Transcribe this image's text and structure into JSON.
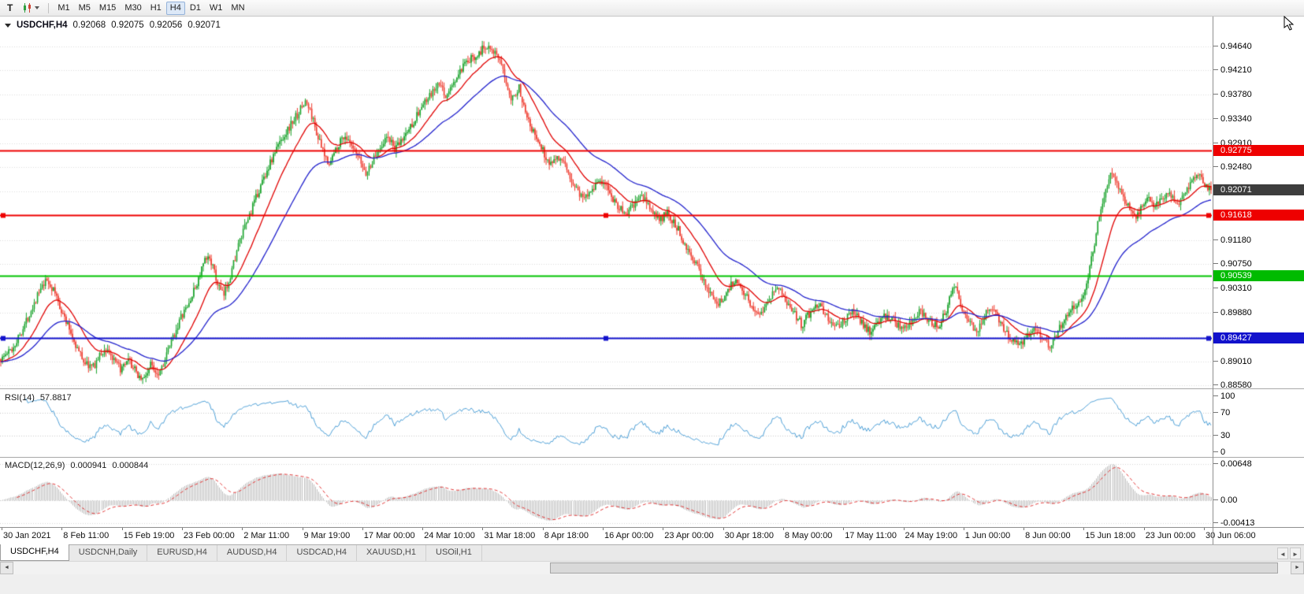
{
  "toolbar": {
    "tool_button_label": "T",
    "timeframes": [
      "M1",
      "M5",
      "M15",
      "M30",
      "H1",
      "H4",
      "D1",
      "W1",
      "MN"
    ],
    "active_timeframe": "H4"
  },
  "chart_header": {
    "marker_icon": "triangle-down",
    "symbol": "USDCHF,H4",
    "open": "0.92068",
    "high": "0.92075",
    "low": "0.92056",
    "close": "0.92071"
  },
  "price_axis": {
    "labels": [
      "0.94640",
      "0.94210",
      "0.93780",
      "0.93340",
      "0.92910",
      "0.92480",
      "0.91180",
      "0.90750",
      "0.90310",
      "0.89880",
      "0.89010",
      "0.88580"
    ],
    "badges": [
      {
        "name": "resistance-upper",
        "text": "0.92775",
        "price": 0.92775,
        "bg": "#ee0000",
        "fg": "#ffffff"
      },
      {
        "name": "current-price",
        "text": "0.92071",
        "price": 0.92071,
        "bg": "#3d3d3d",
        "fg": "#ffffff"
      },
      {
        "name": "resistance-lower",
        "text": "0.91618",
        "price": 0.91618,
        "bg": "#ee0000",
        "fg": "#ffffff"
      },
      {
        "name": "support-green",
        "text": "0.90539",
        "price": 0.90539,
        "bg": "#00bb00",
        "fg": "#ffffff"
      },
      {
        "name": "support-blue",
        "text": "0.89427",
        "price": 0.89427,
        "bg": "#1212cc",
        "fg": "#ffffff"
      }
    ]
  },
  "time_axis": {
    "labels": [
      "30 Jan 2021",
      "8 Feb 11:00",
      "15 Feb 19:00",
      "23 Feb 00:00",
      "2 Mar 11:00",
      "9 Mar 19:00",
      "17 Mar 00:00",
      "24 Mar 10:00",
      "31 Mar 18:00",
      "8 Apr 18:00",
      "16 Apr 00:00",
      "23 Apr 00:00",
      "30 Apr 18:00",
      "8 May 00:00",
      "17 May 11:00",
      "24 May 19:00",
      "1 Jun 00:00",
      "8 Jun 00:00",
      "15 Jun 18:00",
      "23 Jun 00:00",
      "30 Jun 06:00"
    ]
  },
  "panes": {
    "rsi": {
      "title": "RSI(14)",
      "value": "57.8817",
      "axis_labels": [
        "100",
        "70",
        "30",
        "0"
      ],
      "levels": [
        70,
        30
      ],
      "color": "#4d9fd6"
    },
    "macd": {
      "title": "MACD(12,26,9)",
      "value_main": "0.000941",
      "value_signal": "0.000844",
      "axis_labels": [
        "0.00648",
        "0.00",
        "-0.00413"
      ],
      "histogram_color": "#bcbcbc",
      "signal_color": "#e03030"
    }
  },
  "tabs": {
    "items": [
      "USDCHF,H4",
      "USDCNH,Daily",
      "EURUSD,H4",
      "AUDUSD,H4",
      "USDCAD,H4",
      "XAUUSD,H1",
      "USOil,H1"
    ],
    "active_index": 0
  },
  "tab_scroll": {
    "left_arrow": "◄",
    "right_arrow": "►"
  },
  "scrollbar": {
    "left_arrow": "◄",
    "right_arrow": "►",
    "thumb_start": 0.42,
    "thumb_end": 0.99
  },
  "chart_data": {
    "type": "candlestick",
    "symbol": "USDCHF",
    "timeframe": "H4",
    "num_candles": 760,
    "y_range": [
      0.8853,
      0.9517
    ],
    "grid_color": "#dcdcdc",
    "grid_prices": [
      0.8858,
      0.8901,
      0.8945,
      0.8988,
      0.9031,
      0.9075,
      0.9118,
      0.9162,
      0.9205,
      0.9248,
      0.9291,
      0.9334,
      0.9378,
      0.9421,
      0.9464
    ],
    "x_labels": [
      "30 Jan 2021",
      "8 Feb 11:00",
      "15 Feb 19:00",
      "23 Feb 00:00",
      "2 Mar 11:00",
      "9 Mar 19:00",
      "17 Mar 00:00",
      "24 Mar 10:00",
      "31 Mar 18:00",
      "8 Apr 18:00",
      "16 Apr 00:00",
      "23 Apr 00:00",
      "30 Apr 18:00",
      "8 May 00:00",
      "17 May 11:00",
      "24 May 19:00",
      "1 Jun 00:00",
      "8 Jun 00:00",
      "15 Jun 18:00",
      "23 Jun 00:00",
      "30 Jun 06:00"
    ],
    "last_ohlc": {
      "open": 0.92068,
      "high": 0.92075,
      "low": 0.92056,
      "close": 0.92071
    },
    "candle_up_color": "#1aa32c",
    "candle_down_color": "#ee3b2e",
    "moving_averages": [
      {
        "type": "EMA",
        "period": 21,
        "color": "#e00000"
      },
      {
        "type": "EMA",
        "period": 55,
        "color": "#2121cc"
      }
    ],
    "hlines": [
      {
        "price": 0.92775,
        "color": "#ee0000",
        "width": 2,
        "selected": false
      },
      {
        "price": 0.91618,
        "color": "#ee0000",
        "width": 2,
        "selected": true
      },
      {
        "price": 0.90539,
        "color": "#00c300",
        "width": 2,
        "selected": false
      },
      {
        "price": 0.89427,
        "color": "#1212cc",
        "width": 2,
        "selected": true
      }
    ],
    "rsi": {
      "period": 14,
      "last_value": 57.8817
    },
    "macd": {
      "fast": 12,
      "slow": 26,
      "signal_period": 9,
      "last_main": 0.000941,
      "last_signal": 0.000844
    },
    "price_path": [
      [
        0.0,
        0.8905
      ],
      [
        0.01,
        0.8925
      ],
      [
        0.02,
        0.8968
      ],
      [
        0.03,
        0.9018
      ],
      [
        0.038,
        0.9046
      ],
      [
        0.045,
        0.9022
      ],
      [
        0.052,
        0.8982
      ],
      [
        0.058,
        0.8952
      ],
      [
        0.064,
        0.892
      ],
      [
        0.07,
        0.8898
      ],
      [
        0.076,
        0.889
      ],
      [
        0.082,
        0.8912
      ],
      [
        0.088,
        0.8924
      ],
      [
        0.094,
        0.8898
      ],
      [
        0.1,
        0.8886
      ],
      [
        0.106,
        0.8902
      ],
      [
        0.112,
        0.888
      ],
      [
        0.118,
        0.8868
      ],
      [
        0.124,
        0.8896
      ],
      [
        0.13,
        0.888
      ],
      [
        0.136,
        0.8906
      ],
      [
        0.142,
        0.8942
      ],
      [
        0.148,
        0.8976
      ],
      [
        0.155,
        0.9002
      ],
      [
        0.162,
        0.904
      ],
      [
        0.168,
        0.9078
      ],
      [
        0.173,
        0.9088
      ],
      [
        0.178,
        0.9046
      ],
      [
        0.184,
        0.9016
      ],
      [
        0.19,
        0.9058
      ],
      [
        0.196,
        0.9106
      ],
      [
        0.203,
        0.9148
      ],
      [
        0.21,
        0.9188
      ],
      [
        0.217,
        0.9228
      ],
      [
        0.224,
        0.9262
      ],
      [
        0.231,
        0.9295
      ],
      [
        0.238,
        0.9318
      ],
      [
        0.245,
        0.9342
      ],
      [
        0.252,
        0.9366
      ],
      [
        0.257,
        0.934
      ],
      [
        0.262,
        0.9302
      ],
      [
        0.267,
        0.9268
      ],
      [
        0.272,
        0.9256
      ],
      [
        0.278,
        0.9286
      ],
      [
        0.284,
        0.9306
      ],
      [
        0.29,
        0.9282
      ],
      [
        0.296,
        0.9262
      ],
      [
        0.302,
        0.9236
      ],
      [
        0.308,
        0.9262
      ],
      [
        0.314,
        0.9288
      ],
      [
        0.32,
        0.9302
      ],
      [
        0.326,
        0.9278
      ],
      [
        0.332,
        0.9298
      ],
      [
        0.34,
        0.9326
      ],
      [
        0.348,
        0.9356
      ],
      [
        0.356,
        0.9378
      ],
      [
        0.362,
        0.9396
      ],
      [
        0.368,
        0.9374
      ],
      [
        0.374,
        0.9398
      ],
      [
        0.382,
        0.9426
      ],
      [
        0.39,
        0.9444
      ],
      [
        0.398,
        0.9458
      ],
      [
        0.404,
        0.9468
      ],
      [
        0.41,
        0.9446
      ],
      [
        0.416,
        0.9412
      ],
      [
        0.422,
        0.9372
      ],
      [
        0.428,
        0.939
      ],
      [
        0.434,
        0.9348
      ],
      [
        0.44,
        0.931
      ],
      [
        0.447,
        0.9282
      ],
      [
        0.453,
        0.9254
      ],
      [
        0.46,
        0.927
      ],
      [
        0.467,
        0.9244
      ],
      [
        0.474,
        0.9216
      ],
      [
        0.481,
        0.9192
      ],
      [
        0.488,
        0.921
      ],
      [
        0.495,
        0.9226
      ],
      [
        0.502,
        0.9206
      ],
      [
        0.509,
        0.9182
      ],
      [
        0.516,
        0.9162
      ],
      [
        0.523,
        0.918
      ],
      [
        0.53,
        0.9196
      ],
      [
        0.537,
        0.9174
      ],
      [
        0.544,
        0.9152
      ],
      [
        0.551,
        0.9166
      ],
      [
        0.558,
        0.9144
      ],
      [
        0.565,
        0.9114
      ],
      [
        0.572,
        0.9084
      ],
      [
        0.579,
        0.9054
      ],
      [
        0.586,
        0.9024
      ],
      [
        0.593,
        0.9002
      ],
      [
        0.6,
        0.9026
      ],
      [
        0.607,
        0.905
      ],
      [
        0.613,
        0.903
      ],
      [
        0.62,
        0.9002
      ],
      [
        0.627,
        0.8986
      ],
      [
        0.634,
        0.9012
      ],
      [
        0.641,
        0.9036
      ],
      [
        0.648,
        0.9012
      ],
      [
        0.655,
        0.899
      ],
      [
        0.662,
        0.8966
      ],
      [
        0.669,
        0.899
      ],
      [
        0.676,
        0.9006
      ],
      [
        0.683,
        0.898
      ],
      [
        0.69,
        0.896
      ],
      [
        0.697,
        0.8976
      ],
      [
        0.704,
        0.8992
      ],
      [
        0.711,
        0.8972
      ],
      [
        0.718,
        0.8954
      ],
      [
        0.725,
        0.897
      ],
      [
        0.732,
        0.8984
      ],
      [
        0.739,
        0.897
      ],
      [
        0.746,
        0.8956
      ],
      [
        0.753,
        0.8974
      ],
      [
        0.76,
        0.899
      ],
      [
        0.767,
        0.8976
      ],
      [
        0.774,
        0.8962
      ],
      [
        0.781,
        0.8992
      ],
      [
        0.788,
        0.904
      ],
      [
        0.794,
        0.9
      ],
      [
        0.8,
        0.8972
      ],
      [
        0.806,
        0.8954
      ],
      [
        0.812,
        0.898
      ],
      [
        0.818,
        0.9002
      ],
      [
        0.824,
        0.8978
      ],
      [
        0.83,
        0.8956
      ],
      [
        0.836,
        0.894
      ],
      [
        0.842,
        0.8928
      ],
      [
        0.848,
        0.8946
      ],
      [
        0.854,
        0.8966
      ],
      [
        0.86,
        0.8946
      ],
      [
        0.866,
        0.8928
      ],
      [
        0.872,
        0.895
      ],
      [
        0.878,
        0.8974
      ],
      [
        0.884,
        0.8996
      ],
      [
        0.89,
        0.9004
      ],
      [
        0.896,
        0.903
      ],
      [
        0.902,
        0.9092
      ],
      [
        0.907,
        0.9154
      ],
      [
        0.912,
        0.9202
      ],
      [
        0.917,
        0.9238
      ],
      [
        0.922,
        0.9218
      ],
      [
        0.927,
        0.9198
      ],
      [
        0.932,
        0.9176
      ],
      [
        0.938,
        0.9158
      ],
      [
        0.943,
        0.9178
      ],
      [
        0.948,
        0.9194
      ],
      [
        0.953,
        0.9174
      ],
      [
        0.958,
        0.9186
      ],
      [
        0.963,
        0.92
      ],
      [
        0.968,
        0.9192
      ],
      [
        0.973,
        0.9186
      ],
      [
        0.978,
        0.92
      ],
      [
        0.983,
        0.9218
      ],
      [
        0.988,
        0.9238
      ],
      [
        0.993,
        0.922
      ],
      [
        1.0,
        0.9207
      ]
    ]
  }
}
